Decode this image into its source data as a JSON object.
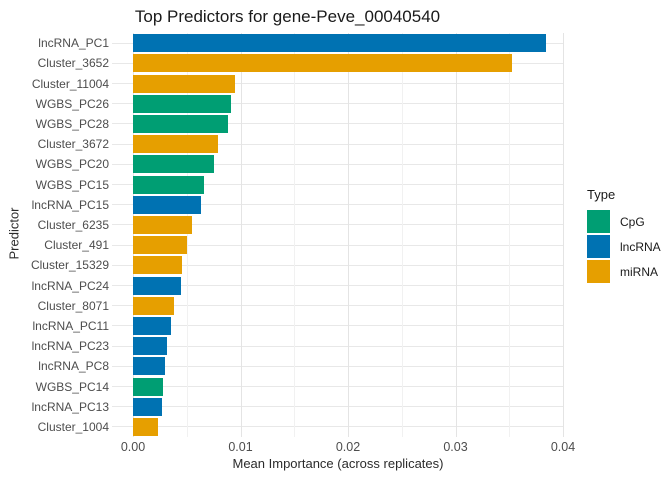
{
  "chart_data": {
    "type": "bar",
    "orientation": "horizontal",
    "title": "Top Predictors for gene-Peve_00040540",
    "xlabel": "Mean Importance (across replicates)",
    "ylabel": "Predictor",
    "xlim": [
      0,
      0.04
    ],
    "grid": true,
    "x_ticks": [
      {
        "value": 0.0,
        "label": "0.00"
      },
      {
        "value": 0.01,
        "label": "0.01"
      },
      {
        "value": 0.02,
        "label": "0.02"
      },
      {
        "value": 0.03,
        "label": "0.03"
      },
      {
        "value": 0.04,
        "label": "0.04"
      }
    ],
    "x_minor_ticks": [
      0.005,
      0.015,
      0.025,
      0.035
    ],
    "legend": {
      "title": "Type",
      "position": "right",
      "entries": [
        {
          "label": "CpG",
          "color": "#009E73"
        },
        {
          "label": "lncRNA",
          "color": "#0072B2"
        },
        {
          "label": "miRNA",
          "color": "#E69F00"
        }
      ]
    },
    "colors": {
      "CpG": "#009E73",
      "lncRNA": "#0072B2",
      "miRNA": "#E69F00"
    },
    "bars": [
      {
        "label": "lncRNA_PC1",
        "type": "lncRNA",
        "value": 0.0384
      },
      {
        "label": "Cluster_3652",
        "type": "miRNA",
        "value": 0.0353
      },
      {
        "label": "Cluster_11004",
        "type": "miRNA",
        "value": 0.0095
      },
      {
        "label": "WGBS_PC26",
        "type": "CpG",
        "value": 0.0091
      },
      {
        "label": "WGBS_PC28",
        "type": "CpG",
        "value": 0.0088
      },
      {
        "label": "Cluster_3672",
        "type": "miRNA",
        "value": 0.0079
      },
      {
        "label": "WGBS_PC20",
        "type": "CpG",
        "value": 0.0075
      },
      {
        "label": "WGBS_PC15",
        "type": "CpG",
        "value": 0.0066
      },
      {
        "label": "lncRNA_PC15",
        "type": "lncRNA",
        "value": 0.0063
      },
      {
        "label": "Cluster_6235",
        "type": "miRNA",
        "value": 0.0055
      },
      {
        "label": "Cluster_491",
        "type": "miRNA",
        "value": 0.005
      },
      {
        "label": "Cluster_15329",
        "type": "miRNA",
        "value": 0.0046
      },
      {
        "label": "lncRNA_PC24",
        "type": "lncRNA",
        "value": 0.0045
      },
      {
        "label": "Cluster_8071",
        "type": "miRNA",
        "value": 0.0038
      },
      {
        "label": "lncRNA_PC11",
        "type": "lncRNA",
        "value": 0.0035
      },
      {
        "label": "lncRNA_PC23",
        "type": "lncRNA",
        "value": 0.0032
      },
      {
        "label": "lncRNA_PC8",
        "type": "lncRNA",
        "value": 0.003
      },
      {
        "label": "WGBS_PC14",
        "type": "CpG",
        "value": 0.0028
      },
      {
        "label": "lncRNA_PC13",
        "type": "lncRNA",
        "value": 0.0027
      },
      {
        "label": "Cluster_1004",
        "type": "miRNA",
        "value": 0.0023
      }
    ]
  }
}
